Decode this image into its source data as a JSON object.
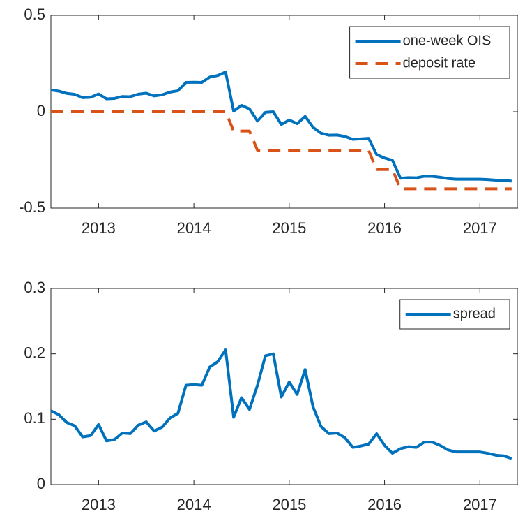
{
  "chart_data": [
    {
      "type": "line",
      "x": [
        2012.5,
        2012.583,
        2012.667,
        2012.75,
        2012.833,
        2012.917,
        2013,
        2013.083,
        2013.167,
        2013.25,
        2013.333,
        2013.417,
        2013.5,
        2013.583,
        2013.667,
        2013.75,
        2013.833,
        2013.917,
        2014,
        2014.083,
        2014.167,
        2014.25,
        2014.333,
        2014.417,
        2014.5,
        2014.583,
        2014.667,
        2014.75,
        2014.833,
        2014.917,
        2015,
        2015.083,
        2015.167,
        2015.25,
        2015.333,
        2015.417,
        2015.5,
        2015.583,
        2015.667,
        2015.75,
        2015.833,
        2015.917,
        2016,
        2016.083,
        2016.167,
        2016.25,
        2016.333,
        2016.417,
        2016.5,
        2016.583,
        2016.667,
        2016.75,
        2016.833,
        2016.917,
        2017,
        2017.083,
        2017.167,
        2017.25,
        2017.333
      ],
      "series": [
        {
          "name": "one-week OIS",
          "color": "#0072bd",
          "dash": false,
          "values": [
            0.113,
            0.107,
            0.095,
            0.09,
            0.073,
            0.075,
            0.092,
            0.067,
            0.069,
            0.079,
            0.078,
            0.091,
            0.096,
            0.082,
            0.088,
            0.102,
            0.109,
            0.152,
            0.153,
            0.152,
            0.18,
            0.188,
            0.206,
            0.003,
            0.033,
            0.015,
            -0.048,
            -0.003,
            0.0,
            -0.066,
            -0.043,
            -0.062,
            -0.024,
            -0.081,
            -0.111,
            -0.122,
            -0.121,
            -0.128,
            -0.143,
            -0.141,
            -0.138,
            -0.222,
            -0.24,
            -0.252,
            -0.345,
            -0.342,
            -0.343,
            -0.335,
            -0.335,
            -0.34,
            -0.347,
            -0.35,
            -0.35,
            -0.35,
            -0.35,
            -0.352,
            -0.355,
            -0.356,
            -0.36
          ]
        },
        {
          "name": "deposit rate",
          "color": "#d95319",
          "dash": true,
          "values": [
            0,
            0,
            0,
            0,
            0,
            0,
            0,
            0,
            0,
            0,
            0,
            0,
            0,
            0,
            0,
            0,
            0,
            0,
            0,
            0,
            0,
            0,
            0,
            -0.1,
            -0.1,
            -0.1,
            -0.2,
            -0.2,
            -0.2,
            -0.2,
            -0.2,
            -0.2,
            -0.2,
            -0.2,
            -0.2,
            -0.2,
            -0.2,
            -0.2,
            -0.2,
            -0.2,
            -0.2,
            -0.3,
            -0.3,
            -0.3,
            -0.4,
            -0.4,
            -0.4,
            -0.4,
            -0.4,
            -0.4,
            -0.4,
            -0.4,
            -0.4,
            -0.4,
            -0.4,
            -0.4,
            -0.4,
            -0.4,
            -0.4
          ]
        }
      ],
      "xlim": [
        2012.5,
        2017.4
      ],
      "xticks": [
        2013,
        2014,
        2015,
        2016,
        2017
      ],
      "ylim": [
        -0.5,
        0.5
      ],
      "yticks": [
        -0.5,
        0,
        0.5
      ],
      "legend": "northeast"
    },
    {
      "type": "line",
      "x": [
        2012.5,
        2012.583,
        2012.667,
        2012.75,
        2012.833,
        2012.917,
        2013,
        2013.083,
        2013.167,
        2013.25,
        2013.333,
        2013.417,
        2013.5,
        2013.583,
        2013.667,
        2013.75,
        2013.833,
        2013.917,
        2014,
        2014.083,
        2014.167,
        2014.25,
        2014.333,
        2014.417,
        2014.5,
        2014.583,
        2014.667,
        2014.75,
        2014.833,
        2014.917,
        2015,
        2015.083,
        2015.167,
        2015.25,
        2015.333,
        2015.417,
        2015.5,
        2015.583,
        2015.667,
        2015.75,
        2015.833,
        2015.917,
        2016,
        2016.083,
        2016.167,
        2016.25,
        2016.333,
        2016.417,
        2016.5,
        2016.583,
        2016.667,
        2016.75,
        2016.833,
        2016.917,
        2017,
        2017.083,
        2017.167,
        2017.25,
        2017.333
      ],
      "series": [
        {
          "name": "spread",
          "color": "#0072bd",
          "dash": false,
          "values": [
            0.113,
            0.107,
            0.095,
            0.09,
            0.073,
            0.075,
            0.092,
            0.067,
            0.069,
            0.079,
            0.078,
            0.091,
            0.096,
            0.082,
            0.088,
            0.102,
            0.109,
            0.152,
            0.153,
            0.152,
            0.18,
            0.188,
            0.206,
            0.103,
            0.133,
            0.115,
            0.152,
            0.197,
            0.2,
            0.134,
            0.157,
            0.138,
            0.176,
            0.119,
            0.089,
            0.078,
            0.079,
            0.072,
            0.057,
            0.059,
            0.062,
            0.078,
            0.06,
            0.048,
            0.055,
            0.058,
            0.057,
            0.065,
            0.065,
            0.06,
            0.053,
            0.05,
            0.05,
            0.05,
            0.05,
            0.048,
            0.045,
            0.044,
            0.04
          ]
        }
      ],
      "xlim": [
        2012.5,
        2017.4
      ],
      "xticks": [
        2013,
        2014,
        2015,
        2016,
        2017
      ],
      "ylim": [
        0,
        0.3
      ],
      "yticks": [
        0,
        0.1,
        0.2,
        0.3
      ],
      "legend": "northeast"
    }
  ]
}
